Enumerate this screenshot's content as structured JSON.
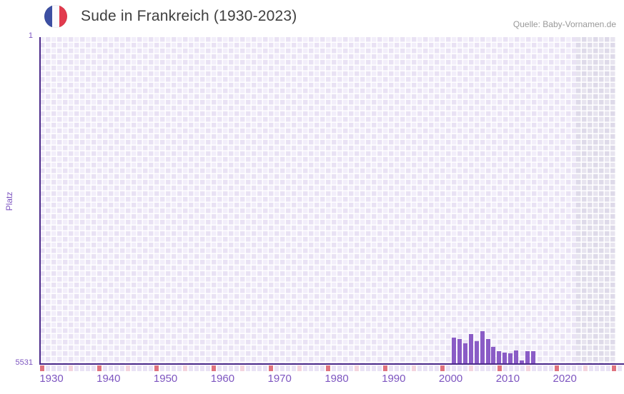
{
  "header": {
    "title": "Sude in Frankreich (1930-2023)",
    "source": "Quelle: Baby-Vornamen.de"
  },
  "chart_data": {
    "type": "bar",
    "title": "Sude in Frankreich (1930-2023)",
    "ylabel": "Platz",
    "y_axis": {
      "top_label": "1",
      "bottom_label": "5531"
    },
    "ylim": [
      1,
      5531
    ],
    "y_inverted": true,
    "x_domain": [
      1930,
      2030
    ],
    "x_tick_labels": [
      "1930",
      "1940",
      "1950",
      "1960",
      "1970",
      "1980",
      "1990",
      "2000",
      "2010",
      "2020"
    ],
    "no_data_region_start": 2024,
    "grid": true,
    "legend": false,
    "points": [
      {
        "year": 2002,
        "rank": 5090
      },
      {
        "year": 2003,
        "rank": 5120
      },
      {
        "year": 2004,
        "rank": 5190
      },
      {
        "year": 2005,
        "rank": 5030
      },
      {
        "year": 2006,
        "rank": 5150
      },
      {
        "year": 2007,
        "rank": 4990
      },
      {
        "year": 2008,
        "rank": 5120
      },
      {
        "year": 2009,
        "rank": 5250
      },
      {
        "year": 2010,
        "rank": 5330
      },
      {
        "year": 2011,
        "rank": 5350
      },
      {
        "year": 2012,
        "rank": 5360
      },
      {
        "year": 2013,
        "rank": 5310
      },
      {
        "year": 2014,
        "rank": 5480
      },
      {
        "year": 2015,
        "rank": 5320
      },
      {
        "year": 2016,
        "rank": 5320
      }
    ]
  },
  "colors": {
    "bar": "#8a5cc6",
    "axis": "#4b2a8a",
    "tick": "#7d55c0",
    "grid-a": "#f2eefa",
    "grid-b": "#e9e2f4",
    "dark-a": "#e7e4ef",
    "dark-b": "#dedae9",
    "strip": "#eae3f5",
    "strip-red": "#e0737f",
    "strip-pink": "#f4d4de",
    "title": "#3f3f3f",
    "source": "#999999",
    "flag-blue": "#3c4fa3",
    "flag-red": "#e23b4e"
  }
}
